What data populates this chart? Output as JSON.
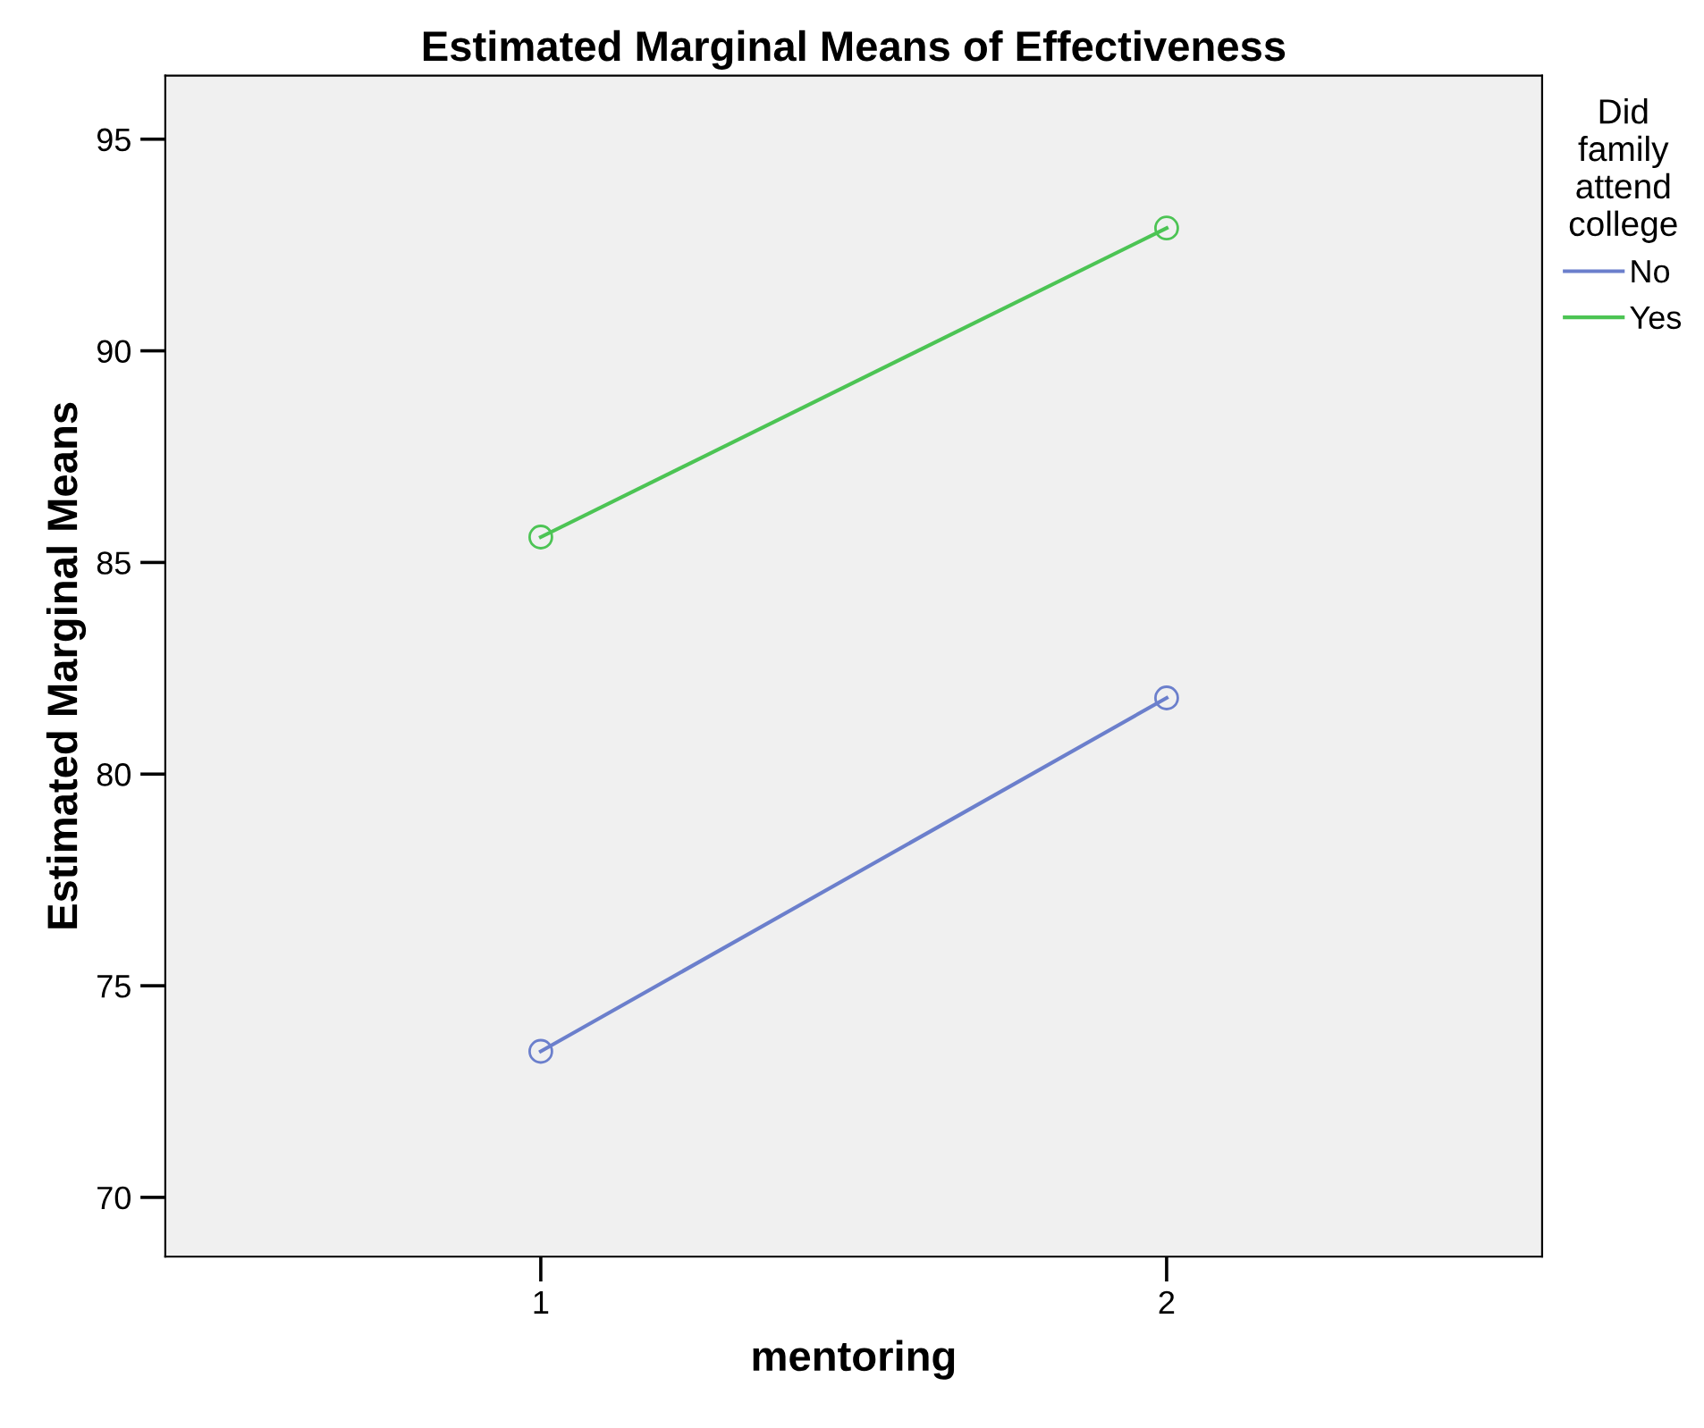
{
  "chart_data": {
    "type": "line",
    "title": "Estimated Marginal Means of Effectiveness",
    "xlabel": "mentoring",
    "ylabel": "Estimated Marginal Means",
    "legend_title": "Did\nfamily\nattend\ncollege",
    "categories": [
      "1",
      "2"
    ],
    "series": [
      {
        "name": "No",
        "color": "#6b7fcc",
        "values": [
          73.45,
          81.8
        ]
      },
      {
        "name": "Yes",
        "color": "#4cc454",
        "values": [
          85.6,
          92.9
        ]
      }
    ],
    "ylim": [
      68.6,
      96.5
    ],
    "yticks": [
      70,
      75,
      80,
      85,
      90,
      95
    ],
    "marker": "circle",
    "line_style": "solid",
    "grid": false,
    "legend": "top right"
  }
}
